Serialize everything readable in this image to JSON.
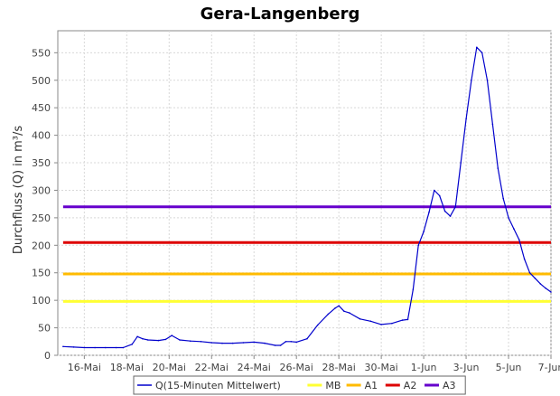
{
  "chart_data": {
    "type": "line",
    "title": "Gera-Langenberg",
    "xlabel": "",
    "ylabel": "Durchfluss (Q) in m³/s",
    "x_range": [
      "2024-05-14T18:00",
      "2024-06-07T00:00"
    ],
    "ylim": [
      0,
      590
    ],
    "yticks": [
      0,
      50,
      100,
      150,
      200,
      250,
      300,
      350,
      400,
      450,
      500,
      550
    ],
    "xticks": [
      {
        "date": "2024-05-16T00:00",
        "label": "16-Mai"
      },
      {
        "date": "2024-05-18T00:00",
        "label": "18-Mai"
      },
      {
        "date": "2024-05-20T00:00",
        "label": "20-Mai"
      },
      {
        "date": "2024-05-22T00:00",
        "label": "22-Mai"
      },
      {
        "date": "2024-05-24T00:00",
        "label": "24-Mai"
      },
      {
        "date": "2024-05-26T00:00",
        "label": "26-Mai"
      },
      {
        "date": "2024-05-28T00:00",
        "label": "28-Mai"
      },
      {
        "date": "2024-05-30T00:00",
        "label": "30-Mai"
      },
      {
        "date": "2024-06-01T00:00",
        "label": "1-Jun"
      },
      {
        "date": "2024-06-03T00:00",
        "label": "3-Jun"
      },
      {
        "date": "2024-06-05T00:00",
        "label": "5-Jun"
      },
      {
        "date": "2024-06-07T00:00",
        "label": "7-Jun"
      }
    ],
    "grid": true,
    "legend_position": "bottom",
    "series": [
      {
        "name": "Q(15-Minuten Mittelwert)",
        "color": "#0000cc",
        "points": [
          [
            "2024-05-15T00:00",
            16
          ],
          [
            "2024-05-15T12:00",
            15
          ],
          [
            "2024-05-16T00:00",
            14
          ],
          [
            "2024-05-16T12:00",
            14
          ],
          [
            "2024-05-17T00:00",
            14
          ],
          [
            "2024-05-17T12:00",
            14
          ],
          [
            "2024-05-17T20:00",
            14
          ],
          [
            "2024-05-18T06:00",
            20
          ],
          [
            "2024-05-18T12:00",
            34
          ],
          [
            "2024-05-18T18:00",
            30
          ],
          [
            "2024-05-19T00:00",
            28
          ],
          [
            "2024-05-19T12:00",
            27
          ],
          [
            "2024-05-19T20:00",
            29
          ],
          [
            "2024-05-20T03:00",
            36
          ],
          [
            "2024-05-20T12:00",
            28
          ],
          [
            "2024-05-21T00:00",
            26
          ],
          [
            "2024-05-21T12:00",
            25
          ],
          [
            "2024-05-22T00:00",
            23
          ],
          [
            "2024-05-22T12:00",
            22
          ],
          [
            "2024-05-23T00:00",
            22
          ],
          [
            "2024-05-23T12:00",
            23
          ],
          [
            "2024-05-24T00:00",
            24
          ],
          [
            "2024-05-24T12:00",
            22
          ],
          [
            "2024-05-25T00:00",
            18
          ],
          [
            "2024-05-25T06:00",
            18
          ],
          [
            "2024-05-25T12:00",
            25
          ],
          [
            "2024-05-25T18:00",
            25
          ],
          [
            "2024-05-26T00:00",
            24
          ],
          [
            "2024-05-26T12:00",
            30
          ],
          [
            "2024-05-27T00:00",
            55
          ],
          [
            "2024-05-27T12:00",
            75
          ],
          [
            "2024-05-27T20:00",
            86
          ],
          [
            "2024-05-28T00:00",
            90
          ],
          [
            "2024-05-28T06:00",
            80
          ],
          [
            "2024-05-28T12:00",
            77
          ],
          [
            "2024-05-29T00:00",
            66
          ],
          [
            "2024-05-29T12:00",
            62
          ],
          [
            "2024-05-30T00:00",
            56
          ],
          [
            "2024-05-30T12:00",
            58
          ],
          [
            "2024-05-31T00:00",
            64
          ],
          [
            "2024-05-31T06:00",
            65
          ],
          [
            "2024-05-31T12:00",
            120
          ],
          [
            "2024-05-31T18:00",
            200
          ],
          [
            "2024-06-01T00:00",
            225
          ],
          [
            "2024-06-01T06:00",
            260
          ],
          [
            "2024-06-01T12:00",
            300
          ],
          [
            "2024-06-01T18:00",
            290
          ],
          [
            "2024-06-02T00:00",
            262
          ],
          [
            "2024-06-02T06:00",
            253
          ],
          [
            "2024-06-02T12:00",
            270
          ],
          [
            "2024-06-02T18:00",
            350
          ],
          [
            "2024-06-03T00:00",
            430
          ],
          [
            "2024-06-03T06:00",
            500
          ],
          [
            "2024-06-03T12:00",
            560
          ],
          [
            "2024-06-03T18:00",
            550
          ],
          [
            "2024-06-04T00:00",
            500
          ],
          [
            "2024-06-04T06:00",
            420
          ],
          [
            "2024-06-04T12:00",
            340
          ],
          [
            "2024-06-04T18:00",
            285
          ],
          [
            "2024-06-05T00:00",
            250
          ],
          [
            "2024-06-05T06:00",
            230
          ],
          [
            "2024-06-05T12:00",
            210
          ],
          [
            "2024-06-05T18:00",
            175
          ],
          [
            "2024-06-06T00:00",
            150
          ],
          [
            "2024-06-06T06:00",
            140
          ],
          [
            "2024-06-06T12:00",
            130
          ],
          [
            "2024-06-06T18:00",
            122
          ],
          [
            "2024-06-07T00:00",
            115
          ]
        ]
      },
      {
        "name": "MB",
        "color": "#ffff33",
        "value": 98
      },
      {
        "name": "A1",
        "color": "#ffbb00",
        "value": 148
      },
      {
        "name": "A2",
        "color": "#dd0000",
        "value": 205
      },
      {
        "name": "A3",
        "color": "#6600cc",
        "value": 270
      }
    ]
  }
}
